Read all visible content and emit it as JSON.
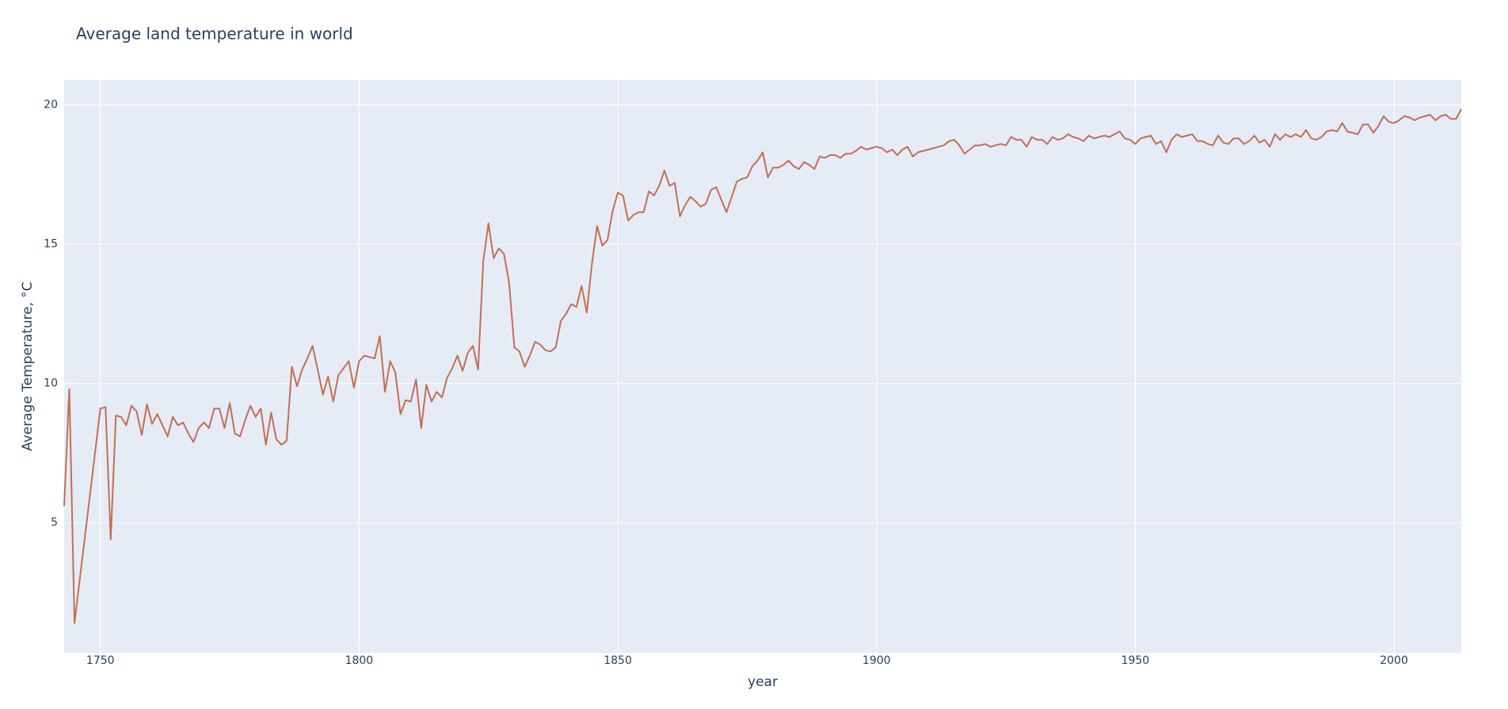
{
  "chart_data": {
    "type": "line",
    "title": "Average land temperature in world",
    "x_label": "year",
    "y_label": "Average Temperature, °C",
    "color": "#c46e54",
    "grid": true,
    "xlim": [
      1743,
      2013
    ],
    "ylim": [
      0.33,
      20.9
    ],
    "xticks": [
      1750,
      1800,
      1850,
      1900,
      1950,
      2000
    ],
    "yticks": [
      5,
      10,
      15,
      20
    ],
    "x": [
      1743,
      1744,
      1745,
      1750,
      1751,
      1752,
      1753,
      1754,
      1755,
      1756,
      1757,
      1758,
      1759,
      1760,
      1761,
      1762,
      1763,
      1764,
      1765,
      1766,
      1767,
      1768,
      1769,
      1770,
      1771,
      1772,
      1773,
      1774,
      1775,
      1776,
      1777,
      1778,
      1779,
      1780,
      1781,
      1782,
      1783,
      1784,
      1785,
      1786,
      1787,
      1788,
      1789,
      1790,
      1791,
      1792,
      1793,
      1794,
      1795,
      1796,
      1797,
      1798,
      1799,
      1800,
      1801,
      1802,
      1803,
      1804,
      1805,
      1806,
      1807,
      1808,
      1809,
      1810,
      1811,
      1812,
      1813,
      1814,
      1815,
      1816,
      1817,
      1818,
      1819,
      1820,
      1821,
      1822,
      1823,
      1824,
      1825,
      1826,
      1827,
      1828,
      1829,
      1830,
      1831,
      1832,
      1833,
      1834,
      1835,
      1836,
      1837,
      1838,
      1839,
      1840,
      1841,
      1842,
      1843,
      1844,
      1845,
      1846,
      1847,
      1848,
      1849,
      1850,
      1851,
      1852,
      1853,
      1854,
      1855,
      1856,
      1857,
      1858,
      1859,
      1860,
      1861,
      1862,
      1863,
      1864,
      1865,
      1866,
      1867,
      1868,
      1869,
      1870,
      1871,
      1872,
      1873,
      1874,
      1875,
      1876,
      1877,
      1878,
      1879,
      1880,
      1881,
      1882,
      1883,
      1884,
      1885,
      1886,
      1887,
      1888,
      1889,
      1890,
      1891,
      1892,
      1893,
      1894,
      1895,
      1896,
      1897,
      1898,
      1899,
      1900,
      1901,
      1902,
      1903,
      1904,
      1905,
      1906,
      1907,
      1908,
      1909,
      1910,
      1911,
      1912,
      1913,
      1914,
      1915,
      1916,
      1917,
      1918,
      1919,
      1920,
      1921,
      1922,
      1923,
      1924,
      1925,
      1926,
      1927,
      1928,
      1929,
      1930,
      1931,
      1932,
      1933,
      1934,
      1935,
      1936,
      1937,
      1938,
      1939,
      1940,
      1941,
      1942,
      1943,
      1944,
      1945,
      1946,
      1947,
      1948,
      1949,
      1950,
      1951,
      1952,
      1953,
      1954,
      1955,
      1956,
      1957,
      1958,
      1959,
      1960,
      1961,
      1962,
      1963,
      1964,
      1965,
      1966,
      1967,
      1968,
      1969,
      1970,
      1971,
      1972,
      1973,
      1974,
      1975,
      1976,
      1977,
      1978,
      1979,
      1980,
      1981,
      1982,
      1983,
      1984,
      1985,
      1986,
      1987,
      1988,
      1989,
      1990,
      1991,
      1992,
      1993,
      1994,
      1995,
      1996,
      1997,
      1998,
      1999,
      2000,
      2001,
      2002,
      2003,
      2004,
      2005,
      2006,
      2007,
      2008,
      2009,
      2010,
      2011,
      2012,
      2013
    ],
    "values": [
      5.6,
      9.8,
      1.4,
      9.1,
      9.15,
      4.4,
      8.85,
      8.8,
      8.5,
      9.2,
      9.0,
      8.15,
      9.25,
      8.55,
      8.9,
      8.5,
      8.1,
      8.8,
      8.5,
      8.6,
      8.2,
      7.9,
      8.4,
      8.6,
      8.4,
      9.1,
      9.1,
      8.4,
      9.3,
      8.2,
      8.1,
      8.7,
      9.2,
      8.8,
      9.1,
      7.8,
      8.95,
      8.0,
      7.8,
      7.95,
      10.6,
      9.9,
      10.5,
      10.9,
      11.35,
      10.5,
      9.6,
      10.25,
      9.35,
      10.3,
      10.55,
      10.8,
      9.85,
      10.8,
      11.0,
      10.95,
      10.9,
      11.7,
      9.7,
      10.8,
      10.4,
      8.9,
      9.4,
      9.35,
      10.15,
      8.4,
      9.95,
      9.35,
      9.7,
      9.5,
      10.2,
      10.55,
      11.0,
      10.45,
      11.1,
      11.35,
      10.5,
      14.4,
      15.75,
      14.5,
      14.85,
      14.65,
      13.6,
      11.3,
      11.15,
      10.6,
      11.0,
      11.5,
      11.4,
      11.2,
      11.15,
      11.3,
      12.25,
      12.5,
      12.85,
      12.75,
      13.5,
      12.55,
      14.3,
      15.65,
      14.95,
      15.15,
      16.2,
      16.85,
      16.75,
      15.85,
      16.05,
      16.15,
      16.15,
      16.9,
      16.75,
      17.1,
      17.65,
      17.1,
      17.2,
      16.0,
      16.4,
      16.7,
      16.55,
      16.35,
      16.45,
      16.95,
      17.05,
      16.6,
      16.15,
      16.7,
      17.25,
      17.35,
      17.4,
      17.8,
      18.0,
      18.3,
      17.4,
      17.75,
      17.75,
      17.85,
      18.0,
      17.8,
      17.7,
      17.95,
      17.85,
      17.7,
      18.15,
      18.1,
      18.2,
      18.2,
      18.1,
      18.25,
      18.25,
      18.35,
      18.5,
      18.4,
      18.45,
      18.5,
      18.45,
      18.3,
      18.4,
      18.2,
      18.4,
      18.5,
      18.15,
      18.3,
      18.35,
      18.4,
      18.45,
      18.5,
      18.55,
      18.7,
      18.75,
      18.55,
      18.25,
      18.4,
      18.55,
      18.55,
      18.6,
      18.5,
      18.55,
      18.6,
      18.55,
      18.85,
      18.75,
      18.75,
      18.5,
      18.85,
      18.75,
      18.75,
      18.6,
      18.85,
      18.75,
      18.8,
      18.95,
      18.85,
      18.8,
      18.7,
      18.9,
      18.8,
      18.85,
      18.9,
      18.85,
      18.95,
      19.05,
      18.8,
      18.75,
      18.6,
      18.8,
      18.85,
      18.9,
      18.6,
      18.7,
      18.3,
      18.75,
      18.95,
      18.85,
      18.9,
      18.95,
      18.7,
      18.7,
      18.6,
      18.55,
      18.9,
      18.65,
      18.6,
      18.8,
      18.8,
      18.6,
      18.7,
      18.9,
      18.65,
      18.75,
      18.5,
      18.95,
      18.75,
      18.95,
      18.85,
      18.95,
      18.85,
      19.1,
      18.8,
      18.75,
      18.85,
      19.05,
      19.1,
      19.05,
      19.35,
      19.05,
      19.0,
      18.95,
      19.3,
      19.3,
      19.0,
      19.25,
      19.6,
      19.4,
      19.35,
      19.45,
      19.6,
      19.55,
      19.45,
      19.55,
      19.6,
      19.65,
      19.45,
      19.6,
      19.65,
      19.5,
      19.5,
      19.85
    ]
  }
}
